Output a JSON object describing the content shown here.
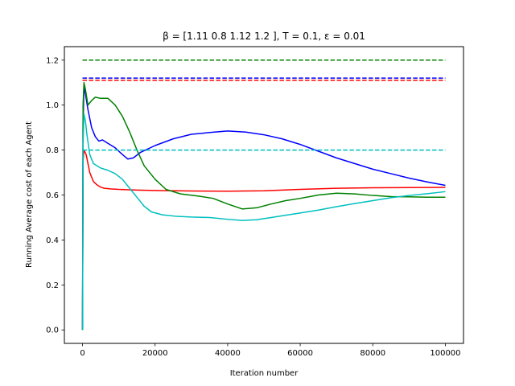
{
  "chart_data": {
    "type": "line",
    "title": "β = [1.11 0.8  1.12 1.2 ], T = 0.1, ε = 0.01",
    "xlabel": "Iteration number",
    "ylabel": "Running Average cost of each Agent",
    "xlim": [
      -5000,
      105000
    ],
    "ylim": [
      -0.06,
      1.26
    ],
    "xticks": [
      0,
      20000,
      40000,
      60000,
      80000,
      100000
    ],
    "xtick_labels": [
      "0",
      "20000",
      "40000",
      "60000",
      "80000",
      "100000"
    ],
    "yticks": [
      0.0,
      0.2,
      0.4,
      0.6,
      0.8,
      1.0,
      1.2
    ],
    "ytick_labels": [
      "0.0",
      "0.2",
      "0.4",
      "0.6",
      "0.8",
      "1.0",
      "1.2"
    ],
    "grid": false,
    "legend": "none",
    "series": [
      {
        "color": "#ff0000",
        "style": "solid",
        "points": [
          [
            0,
            0.0
          ],
          [
            150,
            0.75
          ],
          [
            400,
            0.8
          ],
          [
            1000,
            0.78
          ],
          [
            2000,
            0.7
          ],
          [
            3000,
            0.66
          ],
          [
            4000,
            0.645
          ],
          [
            5000,
            0.635
          ],
          [
            6000,
            0.63
          ],
          [
            8000,
            0.627
          ],
          [
            10000,
            0.625
          ],
          [
            15000,
            0.622
          ],
          [
            20000,
            0.62
          ],
          [
            30000,
            0.618
          ],
          [
            40000,
            0.617
          ],
          [
            50000,
            0.619
          ],
          [
            60000,
            0.625
          ],
          [
            70000,
            0.63
          ],
          [
            80000,
            0.632
          ],
          [
            90000,
            0.633
          ],
          [
            100000,
            0.634
          ]
        ]
      },
      {
        "color": "#0000ff",
        "style": "solid",
        "points": [
          [
            0,
            0.0
          ],
          [
            150,
            0.92
          ],
          [
            400,
            1.08
          ],
          [
            800,
            1.05
          ],
          [
            1500,
            0.98
          ],
          [
            2500,
            0.9
          ],
          [
            3500,
            0.86
          ],
          [
            4500,
            0.84
          ],
          [
            5500,
            0.845
          ],
          [
            7000,
            0.83
          ],
          [
            9000,
            0.81
          ],
          [
            11000,
            0.78
          ],
          [
            12500,
            0.76
          ],
          [
            14000,
            0.765
          ],
          [
            16000,
            0.79
          ],
          [
            20000,
            0.82
          ],
          [
            25000,
            0.85
          ],
          [
            30000,
            0.87
          ],
          [
            35000,
            0.878
          ],
          [
            40000,
            0.885
          ],
          [
            45000,
            0.88
          ],
          [
            50000,
            0.868
          ],
          [
            55000,
            0.85
          ],
          [
            60000,
            0.825
          ],
          [
            65000,
            0.795
          ],
          [
            70000,
            0.765
          ],
          [
            75000,
            0.74
          ],
          [
            80000,
            0.715
          ],
          [
            85000,
            0.695
          ],
          [
            90000,
            0.675
          ],
          [
            95000,
            0.658
          ],
          [
            100000,
            0.643
          ]
        ]
      },
      {
        "color": "#008000",
        "style": "solid",
        "points": [
          [
            0,
            0.0
          ],
          [
            150,
            1.0
          ],
          [
            400,
            1.1
          ],
          [
            800,
            1.07
          ],
          [
            1500,
            1.0
          ],
          [
            2500,
            1.02
          ],
          [
            3500,
            1.035
          ],
          [
            5000,
            1.03
          ],
          [
            7000,
            1.03
          ],
          [
            9000,
            1.0
          ],
          [
            11000,
            0.95
          ],
          [
            13000,
            0.88
          ],
          [
            15000,
            0.8
          ],
          [
            17000,
            0.73
          ],
          [
            20000,
            0.67
          ],
          [
            23000,
            0.625
          ],
          [
            27000,
            0.605
          ],
          [
            32000,
            0.595
          ],
          [
            36000,
            0.585
          ],
          [
            40000,
            0.56
          ],
          [
            44000,
            0.538
          ],
          [
            48000,
            0.543
          ],
          [
            52000,
            0.56
          ],
          [
            56000,
            0.575
          ],
          [
            60000,
            0.585
          ],
          [
            65000,
            0.6
          ],
          [
            70000,
            0.608
          ],
          [
            75000,
            0.605
          ],
          [
            80000,
            0.598
          ],
          [
            85000,
            0.593
          ],
          [
            90000,
            0.592
          ],
          [
            95000,
            0.59
          ],
          [
            100000,
            0.59
          ]
        ]
      },
      {
        "color": "#00bfbf",
        "style": "solid",
        "points": [
          [
            0,
            0.0
          ],
          [
            150,
            0.82
          ],
          [
            400,
            0.96
          ],
          [
            800,
            0.93
          ],
          [
            1200,
            0.87
          ],
          [
            2000,
            0.78
          ],
          [
            3000,
            0.74
          ],
          [
            5000,
            0.72
          ],
          [
            7000,
            0.71
          ],
          [
            9000,
            0.695
          ],
          [
            11000,
            0.67
          ],
          [
            13000,
            0.63
          ],
          [
            15000,
            0.59
          ],
          [
            17000,
            0.55
          ],
          [
            19000,
            0.525
          ],
          [
            22000,
            0.512
          ],
          [
            26000,
            0.505
          ],
          [
            30000,
            0.502
          ],
          [
            35000,
            0.5
          ],
          [
            40000,
            0.492
          ],
          [
            44000,
            0.487
          ],
          [
            48000,
            0.49
          ],
          [
            52000,
            0.5
          ],
          [
            56000,
            0.51
          ],
          [
            60000,
            0.52
          ],
          [
            65000,
            0.533
          ],
          [
            70000,
            0.548
          ],
          [
            75000,
            0.562
          ],
          [
            80000,
            0.575
          ],
          [
            85000,
            0.588
          ],
          [
            90000,
            0.598
          ],
          [
            95000,
            0.606
          ],
          [
            100000,
            0.615
          ]
        ]
      },
      {
        "color": "#ff0000",
        "style": "dashed",
        "points": [
          [
            0,
            1.11
          ],
          [
            100000,
            1.11
          ]
        ]
      },
      {
        "color": "#0000ff",
        "style": "dashed",
        "points": [
          [
            0,
            1.12
          ],
          [
            100000,
            1.12
          ]
        ]
      },
      {
        "color": "#008000",
        "style": "dashed",
        "points": [
          [
            0,
            1.2
          ],
          [
            100000,
            1.2
          ]
        ]
      },
      {
        "color": "#00bfbf",
        "style": "dashed",
        "points": [
          [
            0,
            0.8
          ],
          [
            100000,
            0.8
          ]
        ]
      }
    ]
  }
}
